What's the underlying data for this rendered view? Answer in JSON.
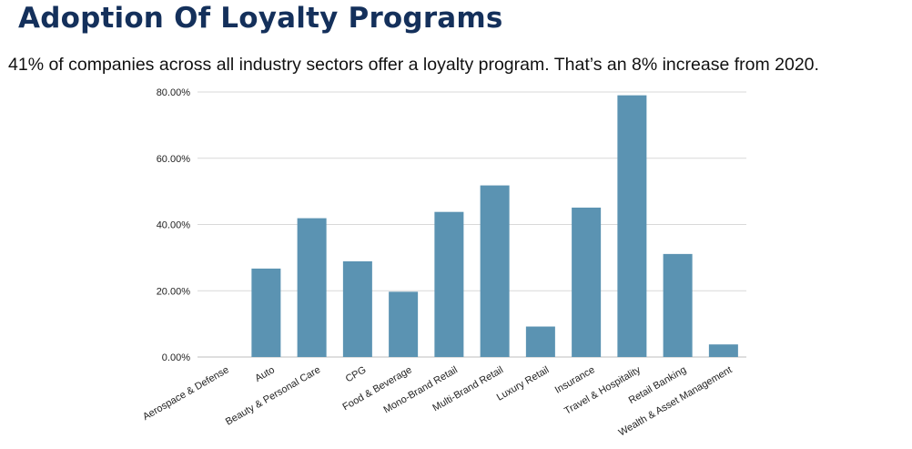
{
  "header": {
    "title": "Adoption Of Loyalty Programs",
    "subtitle": "41% of companies across all industry sectors offer a loyalty program. That’s an 8% increase from 2020."
  },
  "chart_data": {
    "type": "bar",
    "categories": [
      "Aerospace & Defense",
      "Auto",
      "Beauty & Personal Care",
      "CPG",
      "Food & Beverage",
      "Mono-Brand Retail",
      "Multi-Brand Retail",
      "Luxury Retail",
      "Insurance",
      "Travel & Hospitality",
      "Retail Banking",
      "Wealth & Asset Management"
    ],
    "values": [
      0,
      26.7,
      41.9,
      28.9,
      19.7,
      43.8,
      51.8,
      9.2,
      45.1,
      79.0,
      31.1,
      3.8
    ],
    "yticks": [
      "0.00%",
      "20.00%",
      "40.00%",
      "60.00%",
      "80.00%"
    ],
    "ylim": [
      0,
      80
    ],
    "grid": true,
    "bar_color": "#5b93b2",
    "grid_color": "#d9d9d9"
  }
}
